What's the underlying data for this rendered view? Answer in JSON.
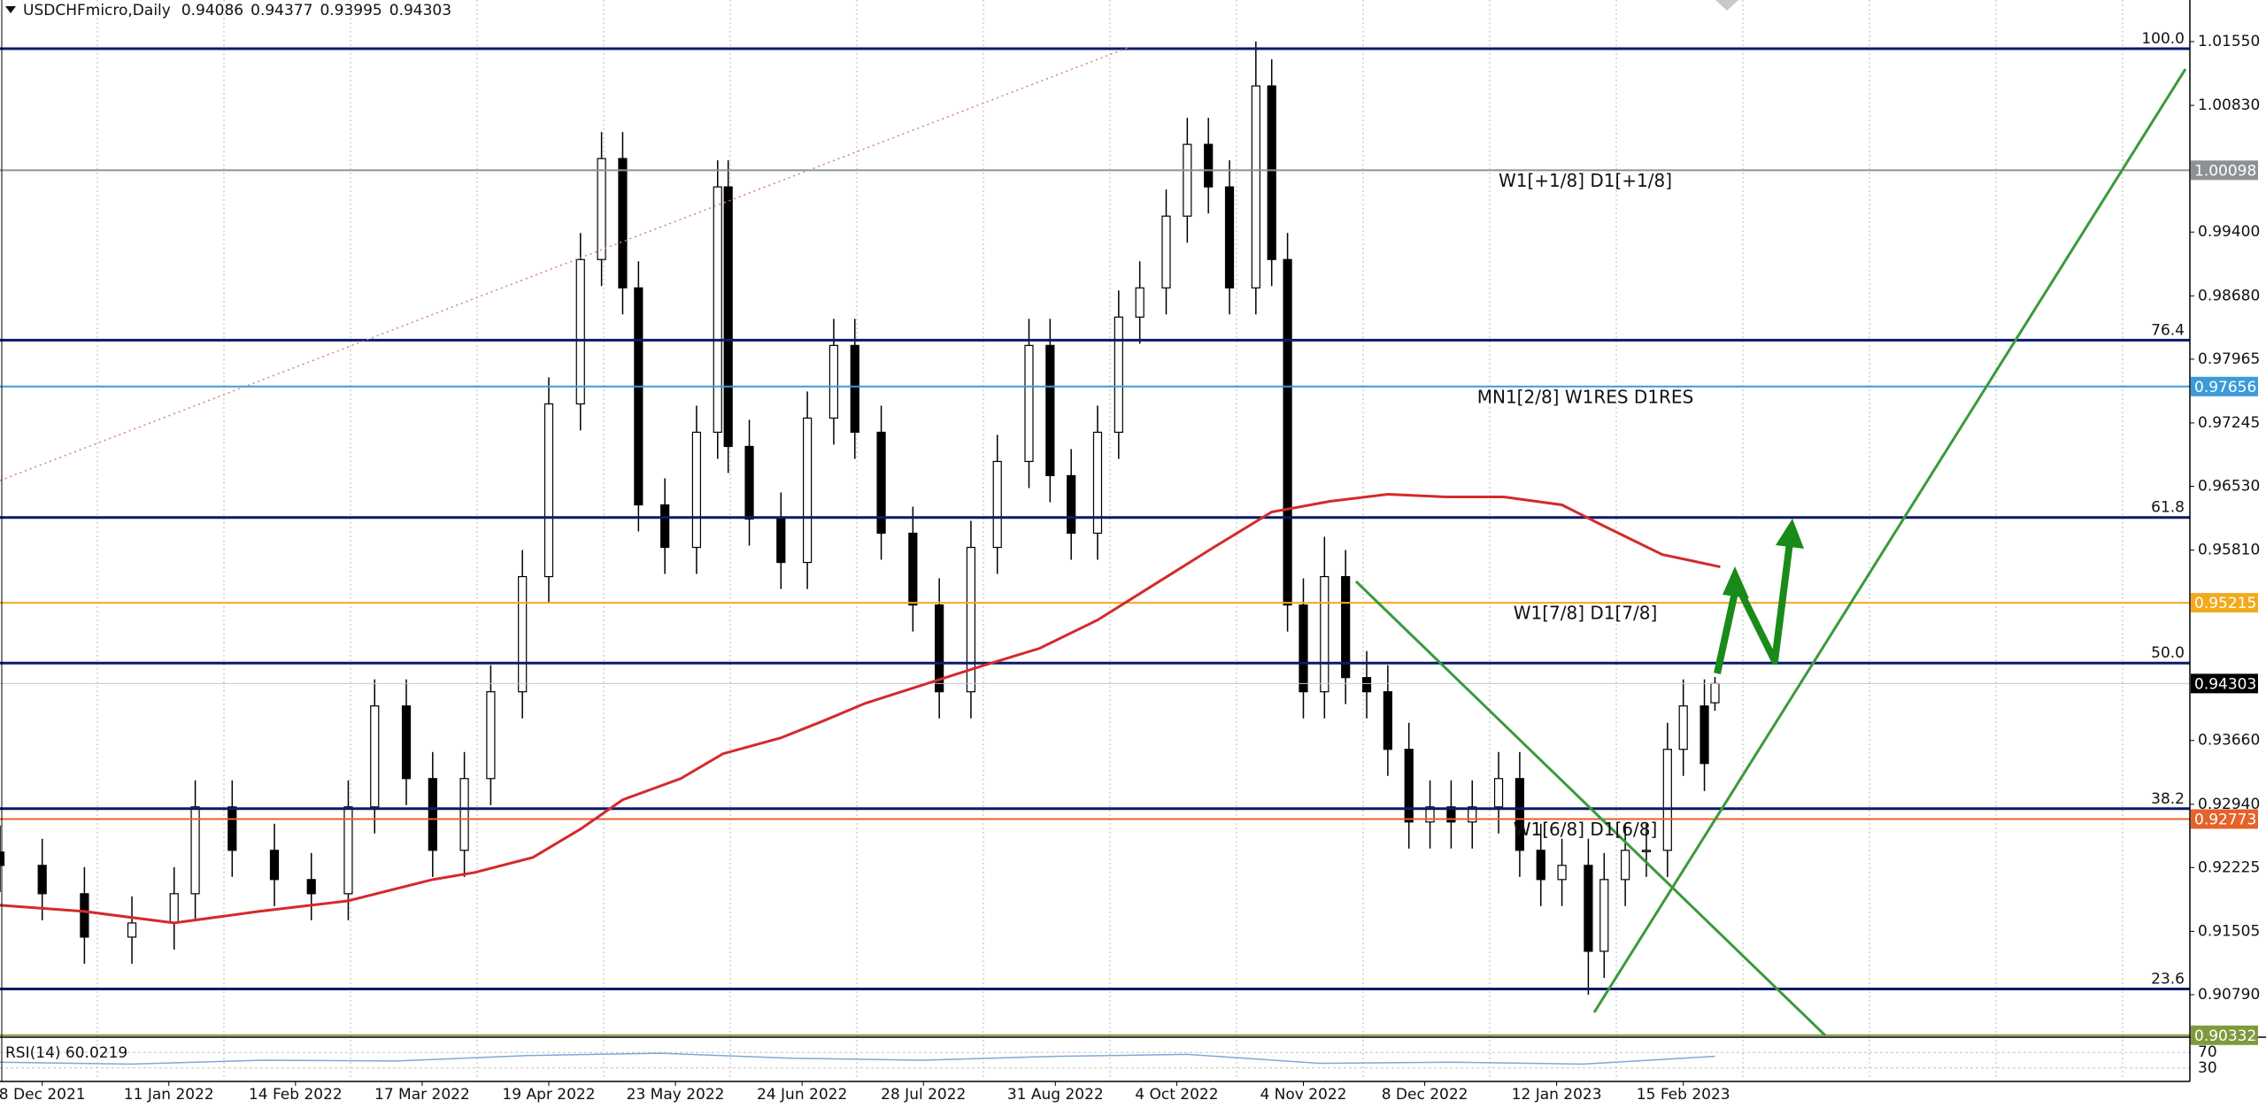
{
  "chart_data": {
    "type": "candlestick",
    "title": "USDCHFmicro,Daily",
    "x": [
      0,
      8,
      16,
      25,
      33,
      37,
      44,
      52,
      59,
      66,
      71,
      77,
      82,
      88,
      93,
      99,
      104,
      110,
      114,
      118,
      121,
      126,
      132,
      136,
      138,
      142,
      148,
      153,
      158,
      162,
      167,
      173,
      178,
      184,
      189,
      195,
      199,
      203,
      208,
      212,
      216,
      221,
      225,
      229,
      233,
      238,
      241,
      244,
      247,
      251,
      255,
      259,
      263,
      267,
      271,
      275,
      279,
      284,
      288,
      292,
      296,
      301,
      304,
      308,
      312,
      316,
      319,
      323,
      325
    ],
    "open": [
      0.924,
      0.9225,
      0.9193,
      0.9144,
      0.916,
      0.9193,
      0.9291,
      0.9242,
      0.9209,
      0.9193,
      0.9291,
      0.9405,
      0.9323,
      0.9242,
      0.9323,
      0.9421,
      0.9551,
      0.9746,
      0.9909,
      1.0023,
      0.9877,
      0.9632,
      0.9584,
      0.9714,
      0.9991,
      0.9698,
      0.9616,
      0.9567,
      0.973,
      0.9812,
      0.9714,
      0.96,
      0.9519,
      0.9421,
      0.9584,
      0.9681,
      0.9812,
      0.9665,
      0.96,
      0.9714,
      0.9844,
      0.9877,
      0.9958,
      1.0039,
      0.9991,
      0.9877,
      1.0105,
      0.9909,
      0.9519,
      0.9421,
      0.9551,
      0.9437,
      0.9421,
      0.9356,
      0.9274,
      0.9291,
      0.9274,
      0.9291,
      0.9323,
      0.9242,
      0.9209,
      0.9225,
      0.9128,
      0.9209,
      0.9242,
      0.9242,
      0.9356,
      0.9405,
      0.94086
    ],
    "high": [
      0.927,
      0.9255,
      0.9223,
      0.919,
      0.9223,
      0.9321,
      0.9321,
      0.9272,
      0.9239,
      0.9321,
      0.9435,
      0.9435,
      0.9353,
      0.9353,
      0.9451,
      0.9581,
      0.9776,
      0.9939,
      1.0053,
      1.0053,
      0.9907,
      0.9662,
      0.9744,
      1.0021,
      1.0021,
      0.9728,
      0.9646,
      0.976,
      0.9842,
      0.9842,
      0.9744,
      0.963,
      0.9549,
      0.9614,
      0.9711,
      0.9842,
      0.9842,
      0.9695,
      0.9744,
      0.9874,
      0.9907,
      0.9988,
      1.0069,
      1.0069,
      1.0021,
      1.0155,
      1.0135,
      0.9939,
      0.9549,
      0.9596,
      0.9581,
      0.9467,
      0.9451,
      0.9386,
      0.9321,
      0.9321,
      0.9321,
      0.9353,
      0.9353,
      0.9272,
      0.9255,
      0.9255,
      0.9239,
      0.9272,
      0.9272,
      0.9386,
      0.9435,
      0.9435,
      0.94377
    ],
    "low": [
      0.9195,
      0.9163,
      0.9114,
      0.9114,
      0.913,
      0.9163,
      0.9212,
      0.9179,
      0.9163,
      0.9163,
      0.9261,
      0.9293,
      0.9212,
      0.9212,
      0.9293,
      0.9391,
      0.9521,
      0.9716,
      0.9879,
      0.9847,
      0.9602,
      0.9554,
      0.9554,
      0.9684,
      0.9668,
      0.9586,
      0.9537,
      0.9537,
      0.97,
      0.9684,
      0.957,
      0.9489,
      0.9391,
      0.9391,
      0.9554,
      0.9651,
      0.9635,
      0.957,
      0.957,
      0.9684,
      0.9814,
      0.9847,
      0.9928,
      0.9961,
      0.9847,
      0.9847,
      0.9879,
      0.9489,
      0.9391,
      0.9391,
      0.9407,
      0.9391,
      0.9326,
      0.9244,
      0.9244,
      0.9244,
      0.9244,
      0.9261,
      0.9212,
      0.9179,
      0.9179,
      0.9079,
      0.9098,
      0.9179,
      0.9212,
      0.9212,
      0.9326,
      0.9309,
      0.93995
    ],
    "close": [
      0.9225,
      0.9193,
      0.9144,
      0.916,
      0.9193,
      0.9291,
      0.9242,
      0.9209,
      0.9193,
      0.9291,
      0.9405,
      0.9323,
      0.9242,
      0.9323,
      0.9421,
      0.9551,
      0.9746,
      0.9909,
      1.0023,
      0.9877,
      0.9632,
      0.9584,
      0.9714,
      0.9991,
      0.9698,
      0.9616,
      0.9567,
      0.973,
      0.9812,
      0.9714,
      0.96,
      0.9519,
      0.9421,
      0.9584,
      0.9681,
      0.9812,
      0.9665,
      0.96,
      0.9714,
      0.9844,
      0.9877,
      0.9958,
      1.0039,
      0.9991,
      0.9877,
      1.0105,
      0.9909,
      0.9519,
      0.9421,
      0.9551,
      0.9437,
      0.9421,
      0.9356,
      0.9274,
      0.9291,
      0.9274,
      0.9291,
      0.9323,
      0.9242,
      0.9209,
      0.9225,
      0.9128,
      0.9209,
      0.9242,
      0.9242,
      0.9356,
      0.9405,
      0.934,
      0.94303
    ],
    "xlim": [
      0,
      415
    ],
    "xticks": [
      {
        "value": 8,
        "label": "8 Dec 2021"
      },
      {
        "value": 32,
        "label": "11 Jan 2022"
      },
      {
        "value": 56,
        "label": "14 Feb 2022"
      },
      {
        "value": 80,
        "label": "17 Mar 2022"
      },
      {
        "value": 104,
        "label": "19 Apr 2022"
      },
      {
        "value": 128,
        "label": "23 May 2022"
      },
      {
        "value": 152,
        "label": "24 Jun 2022"
      },
      {
        "value": 175,
        "label": "28 Jul 2022"
      },
      {
        "value": 200,
        "label": "31 Aug 2022"
      },
      {
        "value": 223,
        "label": "4 Oct 2022"
      },
      {
        "value": 247,
        "label": "4 Nov 2022"
      },
      {
        "value": 270,
        "label": "8 Dec 2022"
      },
      {
        "value": 295,
        "label": "12 Jan 2023"
      },
      {
        "value": 319,
        "label": "15 Feb 2023"
      }
    ],
    "ylim": [
      0.9033,
      1.0202
    ],
    "yticks": [
      {
        "value": 1.0155,
        "label": "1.01550"
      },
      {
        "value": 1.0083,
        "label": "1.00830"
      },
      {
        "value": 0.994,
        "label": "0.99400"
      },
      {
        "value": 0.9868,
        "label": "0.98680"
      },
      {
        "value": 0.97965,
        "label": "0.97965"
      },
      {
        "value": 0.97245,
        "label": "0.97245"
      },
      {
        "value": 0.9653,
        "label": "0.96530"
      },
      {
        "value": 0.9581,
        "label": "0.95810"
      },
      {
        "value": 0.9366,
        "label": "0.93660"
      },
      {
        "value": 0.9294,
        "label": "0.92940"
      },
      {
        "value": 0.92225,
        "label": "0.92225"
      },
      {
        "value": 0.91505,
        "label": "0.91505"
      },
      {
        "value": 0.9079,
        "label": "0.90790"
      }
    ],
    "grid": true,
    "moving_average": {
      "color": "#d42a2a",
      "x": [
        0,
        16,
        33,
        49,
        66,
        82,
        90,
        101,
        110,
        118,
        129,
        137,
        148,
        156,
        164,
        175,
        186,
        197,
        208,
        219,
        230,
        241,
        252,
        263,
        274,
        285,
        296,
        304,
        315,
        326
      ],
      "values": [
        0.918,
        0.9173,
        0.916,
        0.9173,
        0.9185,
        0.9209,
        0.9217,
        0.9234,
        0.9266,
        0.9299,
        0.9323,
        0.9351,
        0.9369,
        0.9388,
        0.9408,
        0.9429,
        0.945,
        0.947,
        0.9502,
        0.9543,
        0.9584,
        0.9624,
        0.9636,
        0.9644,
        0.9641,
        0.9641,
        0.9632,
        0.9608,
        0.9576,
        0.9562
      ]
    },
    "fib_color": "#0c1a6b",
    "fib_levels": [
      {
        "label": "100.0",
        "value": 1.0147
      },
      {
        "label": "76.4",
        "value": 0.9818
      },
      {
        "label": "61.8",
        "value": 0.96178
      },
      {
        "label": "50.0",
        "value": 0.94534
      },
      {
        "label": "38.2",
        "value": 0.9289
      },
      {
        "label": "23.6",
        "value": 0.90855
      }
    ],
    "murrey_levels": [
      {
        "text": "W1[+1/8] D1[+1/8]",
        "value": 1.00098,
        "color": "#8c9196"
      },
      {
        "text": "MN1[2/8] W1RES D1RES",
        "value": 0.97656,
        "color": "#3b9bd8"
      },
      {
        "text": "W1[7/8] D1[7/8]",
        "value": 0.95215,
        "color": "#f2a91d"
      },
      {
        "text": "W1[6/8] D1[6/8]",
        "value": 0.92773,
        "color": "#e5622a"
      },
      {
        "value": 0.90332,
        "color": "#7f9a3c"
      }
    ],
    "rsi": {
      "label": "RSI(14) 60.0219",
      "color": "#7fa8d8",
      "ylim": [
        0,
        100
      ],
      "yticks": [
        70,
        30
      ],
      "x": [
        0,
        25,
        50,
        75,
        100,
        125,
        150,
        175,
        200,
        225,
        250,
        275,
        300,
        325
      ],
      "values": [
        45,
        40,
        50,
        48,
        62,
        68,
        55,
        50,
        60,
        65,
        42,
        45,
        40,
        60
      ]
    }
  }
}
